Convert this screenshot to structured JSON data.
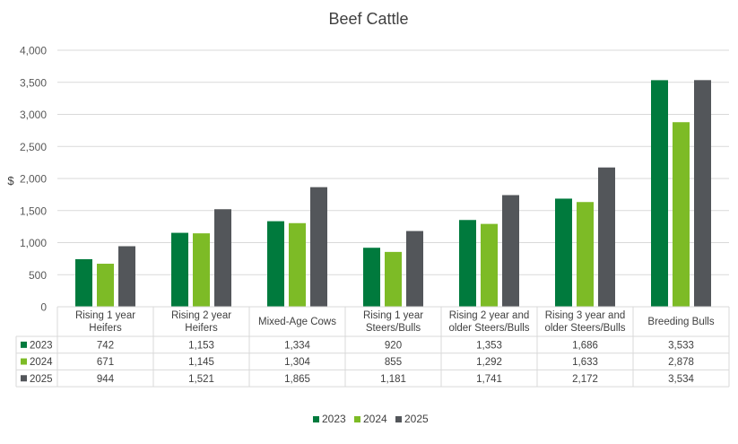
{
  "chart_data": {
    "type": "bar",
    "title": "Beef Cattle",
    "ylabel": "$",
    "xlabel": "",
    "ylim": [
      0,
      4000
    ],
    "yticks": [
      "0",
      "500",
      "1,000",
      "1,500",
      "2,000",
      "2,500",
      "3,000",
      "3,500",
      "4,000"
    ],
    "grid": true,
    "legend": "bottom",
    "data_table": true,
    "categories": [
      [
        "Rising 1 year",
        "Heifers"
      ],
      [
        "Rising 2 year",
        "Heifers"
      ],
      [
        "Mixed-Age Cows"
      ],
      [
        "Rising 1 year",
        "Steers/Bulls"
      ],
      [
        "Rising 2 year and",
        "older Steers/Bulls"
      ],
      [
        "Rising 3 year and",
        "older Steers/Bulls"
      ],
      [
        "Breeding Bulls"
      ]
    ],
    "series": [
      {
        "name": "2023",
        "color": "#007a3d",
        "values": [
          742,
          1153,
          1334,
          920,
          1353,
          1686,
          3533
        ],
        "labels": [
          "742",
          "1,153",
          "1,334",
          "920",
          "1,353",
          "1,686",
          "3,533"
        ]
      },
      {
        "name": "2024",
        "color": "#7dbb26",
        "values": [
          671,
          1145,
          1304,
          855,
          1292,
          1633,
          2878
        ],
        "labels": [
          "671",
          "1,145",
          "1,304",
          "855",
          "1,292",
          "1,633",
          "2,878"
        ]
      },
      {
        "name": "2025",
        "color": "#53565a",
        "values": [
          944,
          1521,
          1865,
          1181,
          1741,
          2172,
          3534
        ],
        "labels": [
          "944",
          "1,521",
          "1,865",
          "1,181",
          "1,741",
          "2,172",
          "3,534"
        ]
      }
    ]
  }
}
